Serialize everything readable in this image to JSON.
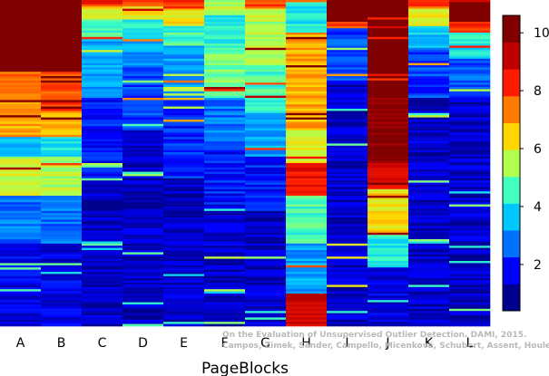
{
  "chart_data": {
    "type": "heatmap",
    "xlabel": "PageBlocks",
    "categories": [
      "A",
      "B",
      "C",
      "D",
      "E",
      "F",
      "G",
      "H",
      "I",
      "J",
      "K",
      "L"
    ],
    "colorbar": {
      "range": [
        0.4,
        10.6
      ],
      "ticks": [
        2,
        4,
        6,
        8,
        10
      ]
    },
    "colormap": [
      "#00008f",
      "#0000ff",
      "#0070ff",
      "#00c8ff",
      "#40ffbf",
      "#b0ff4f",
      "#ffd700",
      "#ff7a00",
      "#ff1a00",
      "#c00000",
      "#800000"
    ],
    "row_count": 150,
    "columns": [
      {
        "name": "A",
        "segments": [
          [
            0.0,
            0.22,
            10.6
          ],
          [
            0.22,
            0.34,
            7.5
          ],
          [
            0.34,
            0.42,
            7.0
          ],
          [
            0.42,
            0.48,
            3.5
          ],
          [
            0.48,
            0.6,
            5.8
          ],
          [
            0.6,
            0.75,
            2.5
          ],
          [
            0.75,
            1.0,
            1.2
          ]
        ]
      },
      {
        "name": "B",
        "segments": [
          [
            0.0,
            0.22,
            10.6
          ],
          [
            0.22,
            0.34,
            8.0
          ],
          [
            0.34,
            0.42,
            7.0
          ],
          [
            0.42,
            0.48,
            4.0
          ],
          [
            0.48,
            0.6,
            5.5
          ],
          [
            0.6,
            0.75,
            2.5
          ],
          [
            0.75,
            1.0,
            1.2
          ]
        ]
      },
      {
        "name": "C",
        "segments": [
          [
            0.0,
            0.02,
            8.5
          ],
          [
            0.02,
            0.06,
            6.2
          ],
          [
            0.06,
            0.12,
            4.5
          ],
          [
            0.12,
            0.3,
            3.0
          ],
          [
            0.3,
            0.55,
            1.6
          ],
          [
            0.55,
            1.0,
            0.9
          ]
        ]
      },
      {
        "name": "D",
        "segments": [
          [
            0.0,
            0.02,
            8.0
          ],
          [
            0.02,
            0.06,
            6.5
          ],
          [
            0.06,
            0.12,
            4.2
          ],
          [
            0.12,
            0.2,
            3.0
          ],
          [
            0.2,
            0.4,
            2.0
          ],
          [
            0.4,
            1.0,
            0.9
          ]
        ]
      },
      {
        "name": "E",
        "segments": [
          [
            0.0,
            0.03,
            8.5
          ],
          [
            0.03,
            0.08,
            6.3
          ],
          [
            0.08,
            0.14,
            4.5
          ],
          [
            0.14,
            0.3,
            3.0
          ],
          [
            0.3,
            0.55,
            1.7
          ],
          [
            0.55,
            1.0,
            0.9
          ]
        ]
      },
      {
        "name": "F",
        "segments": [
          [
            0.0,
            0.05,
            5.5
          ],
          [
            0.05,
            0.15,
            4.2
          ],
          [
            0.15,
            0.3,
            5.0
          ],
          [
            0.3,
            0.45,
            2.5
          ],
          [
            0.45,
            0.65,
            1.6
          ],
          [
            0.65,
            1.0,
            0.9
          ]
        ]
      },
      {
        "name": "G",
        "segments": [
          [
            0.0,
            0.03,
            8.0
          ],
          [
            0.03,
            0.2,
            5.5
          ],
          [
            0.2,
            0.35,
            4.5
          ],
          [
            0.35,
            0.48,
            3.0
          ],
          [
            0.48,
            0.65,
            1.6
          ],
          [
            0.65,
            1.0,
            0.9
          ]
        ]
      },
      {
        "name": "H",
        "segments": [
          [
            0.0,
            0.1,
            4.0
          ],
          [
            0.1,
            0.4,
            7.0
          ],
          [
            0.4,
            0.5,
            6.0
          ],
          [
            0.5,
            0.6,
            9.0
          ],
          [
            0.6,
            0.75,
            4.5
          ],
          [
            0.75,
            0.9,
            3.0
          ],
          [
            0.9,
            1.0,
            9.5
          ]
        ]
      },
      {
        "name": "I",
        "segments": [
          [
            0.0,
            0.07,
            10.6
          ],
          [
            0.07,
            0.09,
            8.0
          ],
          [
            0.09,
            0.25,
            2.0
          ],
          [
            0.25,
            1.0,
            0.9
          ]
        ]
      },
      {
        "name": "J",
        "segments": [
          [
            0.0,
            0.3,
            10.6
          ],
          [
            0.3,
            0.5,
            10.4
          ],
          [
            0.5,
            0.58,
            9.0
          ],
          [
            0.58,
            0.72,
            6.5
          ],
          [
            0.72,
            0.82,
            4.0
          ],
          [
            0.82,
            1.0,
            1.2
          ]
        ]
      },
      {
        "name": "K",
        "segments": [
          [
            0.0,
            0.03,
            8.0
          ],
          [
            0.03,
            0.08,
            6.0
          ],
          [
            0.08,
            0.15,
            3.5
          ],
          [
            0.15,
            0.3,
            2.0
          ],
          [
            0.3,
            1.0,
            0.9
          ]
        ]
      },
      {
        "name": "L",
        "segments": [
          [
            0.0,
            0.07,
            10.6
          ],
          [
            0.07,
            0.1,
            8.5
          ],
          [
            0.1,
            0.18,
            4.0
          ],
          [
            0.18,
            0.3,
            2.2
          ],
          [
            0.3,
            1.0,
            0.9
          ]
        ]
      }
    ]
  },
  "watermark": {
    "line1": "On the Evaluation of Unsupervised Outlier Detection. DAMI, 2015.",
    "line2": "Campos, Zimek, Sander, Campello, Micenková, Schubert, Assent, Houle"
  }
}
